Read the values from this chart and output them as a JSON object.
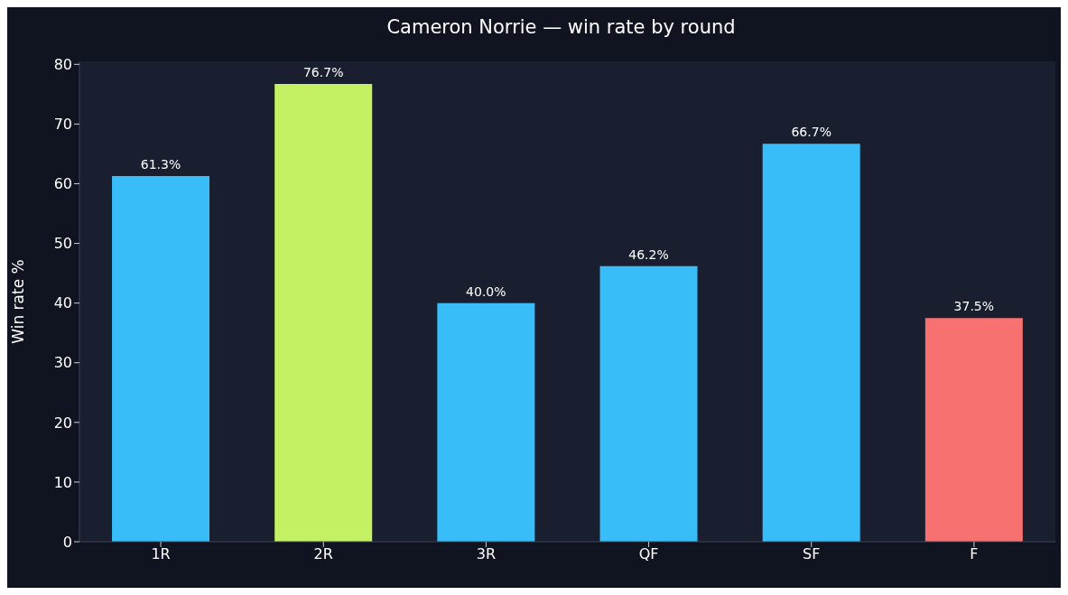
{
  "chart_data": {
    "type": "bar",
    "title": "Cameron Norrie — win rate by round",
    "ylabel": "Win rate %",
    "categories": [
      "1R",
      "2R",
      "3R",
      "QF",
      "SF",
      "F"
    ],
    "values": [
      61.3,
      76.7,
      40.0,
      46.2,
      66.7,
      37.5
    ],
    "colors": [
      "#38bdf8",
      "#c3f163",
      "#38bdf8",
      "#38bdf8",
      "#38bdf8",
      "#f87171"
    ],
    "value_labels": [
      "61.3%",
      "76.7%",
      "40.0%",
      "46.2%",
      "66.7%",
      "37.5%"
    ],
    "ylim": [
      0,
      80.5
    ],
    "yticks": [
      0,
      10,
      20,
      30,
      40,
      50,
      60,
      70,
      80
    ]
  }
}
